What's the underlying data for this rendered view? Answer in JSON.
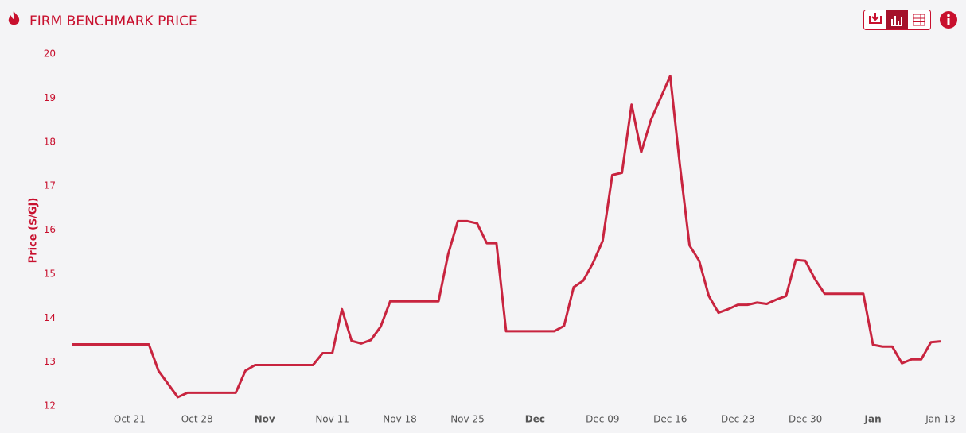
{
  "chart_data": {
    "type": "line",
    "title": "FIRM BENCHMARK PRICE",
    "y_label": "Price ($/GJ)",
    "categories": [
      null,
      null,
      null,
      null,
      null,
      null,
      "Oct 21",
      null,
      null,
      null,
      null,
      null,
      null,
      "Oct 28",
      null,
      null,
      null,
      null,
      null,
      null,
      "Nov",
      null,
      null,
      null,
      null,
      null,
      null,
      "Nov 11",
      null,
      null,
      null,
      null,
      null,
      null,
      "Nov 18",
      null,
      null,
      null,
      null,
      null,
      null,
      "Nov 25",
      null,
      null,
      null,
      null,
      null,
      null,
      "Dec",
      null,
      null,
      null,
      null,
      null,
      null,
      "Dec 09",
      null,
      null,
      null,
      null,
      null,
      null,
      "Dec 16",
      null,
      null,
      null,
      null,
      null,
      null,
      "Dec 23",
      null,
      null,
      null,
      null,
      null,
      null,
      "Dec 30",
      null,
      null,
      null,
      null,
      null,
      null,
      "Jan",
      null,
      null,
      null,
      null,
      null,
      null,
      "Jan 13"
    ],
    "series": [
      {
        "name": "Firm Benchmark Price",
        "color": "#c8243f",
        "values": [
          13.4,
          13.4,
          13.4,
          13.4,
          13.4,
          13.4,
          13.4,
          13.4,
          13.4,
          12.8,
          12.5,
          12.2,
          12.3,
          12.3,
          12.3,
          12.3,
          12.3,
          12.3,
          12.8,
          12.93,
          12.93,
          12.93,
          12.93,
          12.93,
          12.93,
          12.93,
          13.2,
          13.2,
          14.2,
          13.48,
          13.42,
          13.5,
          13.8,
          14.38,
          14.38,
          14.38,
          14.38,
          14.38,
          14.38,
          15.45,
          16.2,
          16.2,
          16.15,
          15.7,
          15.7,
          13.7,
          13.7,
          13.7,
          13.7,
          13.7,
          13.7,
          13.82,
          14.7,
          14.85,
          15.25,
          15.75,
          17.25,
          17.3,
          18.85,
          17.77,
          18.5,
          19.0,
          19.5,
          17.48,
          15.65,
          15.3,
          14.5,
          14.12,
          14.2,
          14.3,
          14.3,
          14.35,
          14.32,
          14.42,
          14.5,
          15.32,
          15.3,
          14.88,
          14.55,
          14.55,
          14.55,
          14.55,
          14.55,
          13.39,
          13.35,
          13.35,
          12.97,
          13.06,
          13.06,
          13.45,
          13.47
        ]
      }
    ],
    "ylim": [
      12,
      20
    ],
    "yticks": [
      12,
      13,
      14,
      15,
      16,
      17,
      18,
      19,
      20
    ],
    "grid": false
  }
}
